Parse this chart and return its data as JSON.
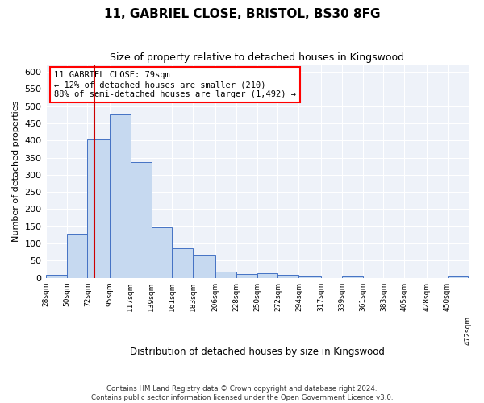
{
  "title": "11, GABRIEL CLOSE, BRISTOL, BS30 8FG",
  "subtitle": "Size of property relative to detached houses in Kingswood",
  "xlabel": "Distribution of detached houses by size in Kingswood",
  "ylabel": "Number of detached properties",
  "bar_color": "#c6d9f0",
  "bar_edge_color": "#4472c4",
  "background_color": "#eef2f9",
  "grid_color": "#ffffff",
  "vline_color": "#cc0000",
  "vline_x": 79,
  "annotation_text": "11 GABRIEL CLOSE: 79sqm\n← 12% of detached houses are smaller (210)\n88% of semi-detached houses are larger (1,492) →",
  "bin_edges": [
    28,
    50,
    72,
    95,
    117,
    139,
    161,
    183,
    206,
    228,
    250,
    272,
    294,
    317,
    339,
    361,
    383,
    405,
    428,
    450,
    472
  ],
  "bin_labels": [
    "28sqm",
    "50sqm",
    "72sqm",
    "95sqm",
    "117sqm",
    "139sqm",
    "161sqm",
    "183sqm",
    "206sqm",
    "228sqm",
    "250sqm",
    "272sqm",
    "294sqm",
    "317sqm",
    "339sqm",
    "361sqm",
    "383sqm",
    "405sqm",
    "428sqm",
    "450sqm"
  ],
  "bar_heights": [
    8,
    127,
    404,
    476,
    338,
    146,
    85,
    67,
    18,
    11,
    14,
    8,
    4,
    0,
    3,
    0,
    0,
    0,
    0,
    3
  ],
  "ylim": [
    0,
    620
  ],
  "yticks": [
    0,
    50,
    100,
    150,
    200,
    250,
    300,
    350,
    400,
    450,
    500,
    550,
    600
  ],
  "footer_line1": "Contains HM Land Registry data © Crown copyright and database right 2024.",
  "footer_line2": "Contains public sector information licensed under the Open Government Licence v3.0."
}
